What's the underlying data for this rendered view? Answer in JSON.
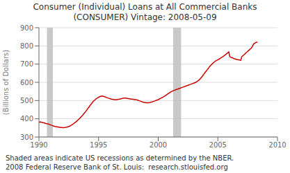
{
  "chart_data": {
    "type": "line",
    "title": "Consumer (Individual) Loans at All Commercial Banks",
    "subtitle": "(CONSUMER) Vintage: 2008-05-09",
    "ylabel": "(Billions of Dollars)",
    "annotations": [
      "Shaded areas indicate US recessions as determined by the NBER.",
      "2008 Federal Reserve Bank of St. Louis:  research.stlouisfed.org"
    ],
    "xlim": [
      1990,
      2010
    ],
    "ylim": [
      300,
      900
    ],
    "xticks": [
      1990,
      1995,
      2000,
      2005,
      2010
    ],
    "yticks": [
      300,
      400,
      500,
      600,
      700,
      800,
      900
    ],
    "grid": true,
    "color": "#cc0000",
    "recessions": [
      [
        1990.67,
        1991.17
      ],
      [
        2001.25,
        2001.92
      ]
    ],
    "x": [
      1990.0,
      1990.08,
      1990.17,
      1990.25,
      1990.33,
      1990.42,
      1990.5,
      1990.58,
      1990.67,
      1990.75,
      1990.83,
      1990.92,
      1991.0,
      1991.08,
      1991.17,
      1991.25,
      1991.33,
      1991.42,
      1991.5,
      1991.58,
      1991.67,
      1991.75,
      1991.83,
      1991.92,
      1992.0,
      1992.08,
      1992.17,
      1992.25,
      1992.33,
      1992.42,
      1992.5,
      1992.58,
      1992.67,
      1992.75,
      1992.83,
      1992.92,
      1993.0,
      1993.08,
      1993.17,
      1993.25,
      1993.33,
      1993.42,
      1993.5,
      1993.58,
      1993.67,
      1993.75,
      1993.83,
      1993.92,
      1994.0,
      1994.08,
      1994.17,
      1994.25,
      1994.33,
      1994.42,
      1994.5,
      1994.58,
      1994.67,
      1994.75,
      1994.83,
      1994.92,
      1995.0,
      1995.08,
      1995.17,
      1995.25,
      1995.33,
      1995.42,
      1995.5,
      1995.58,
      1995.67,
      1995.75,
      1995.83,
      1995.92,
      1996.0,
      1996.08,
      1996.17,
      1996.25,
      1996.33,
      1996.42,
      1996.5,
      1996.58,
      1996.67,
      1996.75,
      1996.83,
      1996.92,
      1997.0,
      1997.08,
      1997.17,
      1997.25,
      1997.33,
      1997.42,
      1997.5,
      1997.58,
      1997.67,
      1997.75,
      1997.83,
      1997.92,
      1998.0,
      1998.08,
      1998.17,
      1998.25,
      1998.33,
      1998.42,
      1998.5,
      1998.58,
      1998.67,
      1998.75,
      1998.83,
      1998.92,
      1999.0,
      1999.08,
      1999.17,
      1999.25,
      1999.33,
      1999.42,
      1999.5,
      1999.58,
      1999.67,
      1999.75,
      1999.83,
      1999.92,
      2000.0,
      2000.08,
      2000.17,
      2000.25,
      2000.33,
      2000.42,
      2000.5,
      2000.58,
      2000.67,
      2000.75,
      2000.83,
      2000.92,
      2001.0,
      2001.08,
      2001.17,
      2001.25,
      2001.33,
      2001.42,
      2001.5,
      2001.58,
      2001.67,
      2001.75,
      2001.83,
      2001.92,
      2002.0,
      2002.08,
      2002.17,
      2002.25,
      2002.33,
      2002.42,
      2002.5,
      2002.58,
      2002.67,
      2002.75,
      2002.83,
      2002.92,
      2003.0,
      2003.08,
      2003.17,
      2003.25,
      2003.33,
      2003.42,
      2003.5,
      2003.58,
      2003.67,
      2003.75,
      2003.83,
      2003.92,
      2004.0,
      2004.08,
      2004.17,
      2004.25,
      2004.33,
      2004.42,
      2004.5,
      2004.58,
      2004.67,
      2004.75,
      2004.83,
      2004.92,
      2005.0,
      2005.08,
      2005.17,
      2005.25,
      2005.33,
      2005.42,
      2005.5,
      2005.58,
      2005.67,
      2005.75,
      2005.83,
      2005.92,
      2006.0,
      2006.08,
      2006.17,
      2006.25,
      2006.33,
      2006.42,
      2006.5,
      2006.58,
      2006.67,
      2006.75,
      2006.83,
      2006.92,
      2007.0,
      2007.08,
      2007.17,
      2007.25,
      2007.33,
      2007.42,
      2007.5,
      2007.58,
      2007.67,
      2007.75,
      2007.83,
      2007.92,
      2008.0,
      2008.08,
      2008.17,
      2008.25,
      2008.33
    ],
    "values": [
      380,
      383,
      382,
      381,
      379,
      378,
      376,
      374,
      373,
      372,
      370,
      368,
      366,
      364,
      362,
      360,
      358,
      357,
      356,
      355,
      354,
      353,
      352,
      352,
      351,
      351,
      352,
      353,
      354,
      356,
      358,
      360,
      363,
      366,
      370,
      374,
      378,
      382,
      387,
      392,
      397,
      402,
      408,
      414,
      420,
      427,
      433,
      440,
      447,
      455,
      462,
      470,
      477,
      484,
      491,
      497,
      502,
      507,
      511,
      515,
      518,
      521,
      523,
      525,
      524,
      523,
      521,
      519,
      517,
      515,
      513,
      511,
      510,
      508,
      507,
      506,
      505,
      505,
      505,
      506,
      507,
      508,
      509,
      511,
      512,
      514,
      514,
      514,
      513,
      512,
      511,
      510,
      509,
      508,
      508,
      507,
      506,
      505,
      504,
      503,
      501,
      499,
      497,
      495,
      493,
      491,
      490,
      489,
      488,
      488,
      488,
      489,
      490,
      492,
      493,
      495,
      497,
      499,
      501,
      503,
      505,
      508,
      511,
      514,
      517,
      520,
      523,
      526,
      530,
      534,
      538,
      542,
      545,
      548,
      551,
      554,
      556,
      558,
      560,
      562,
      564,
      566,
      568,
      570,
      572,
      574,
      576,
      578,
      580,
      582,
      584,
      586,
      588,
      590,
      592,
      594,
      596,
      598,
      601,
      604,
      608,
      613,
      618,
      624,
      631,
      638,
      645,
      653,
      660,
      667,
      674,
      681,
      688,
      694,
      700,
      705,
      710,
      714,
      718,
      721,
      724,
      727,
      730,
      734,
      737,
      741,
      745,
      749,
      753,
      758,
      762,
      767,
      741,
      738,
      736,
      734,
      731,
      729,
      727,
      725,
      724,
      723,
      722,
      721,
      740,
      745,
      750,
      755,
      760,
      765,
      770,
      775,
      780,
      785,
      790,
      800,
      810,
      815,
      818,
      820,
      820
    ]
  }
}
